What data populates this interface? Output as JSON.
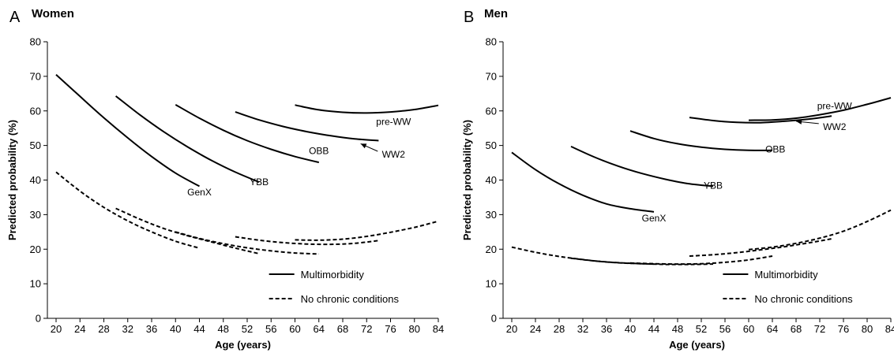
{
  "chart_data": [
    {
      "type": "line",
      "panel": "A",
      "title": "Women",
      "xlabel": "Age (years)",
      "ylabel": "Predicted probability (%)",
      "xlim": [
        20,
        84
      ],
      "ylim": [
        0,
        80
      ],
      "xticks": [
        20,
        24,
        28,
        32,
        36,
        40,
        44,
        48,
        52,
        56,
        60,
        64,
        68,
        72,
        76,
        80,
        84
      ],
      "yticks": [
        0,
        10,
        20,
        30,
        40,
        50,
        60,
        70,
        80
      ],
      "grid": false,
      "legend": {
        "position": "bottom-right",
        "entries": [
          {
            "label": "Multimorbidity",
            "style": "solid"
          },
          {
            "label": "No chronic conditions",
            "style": "dashed"
          }
        ]
      },
      "series": [
        {
          "name": "GenX",
          "group": "Multimorbidity",
          "style": "solid",
          "x": [
            20,
            24,
            28,
            32,
            36,
            40,
            44
          ],
          "y": [
            70.5,
            64.2,
            58.0,
            52.2,
            46.8,
            42.0,
            38.2
          ]
        },
        {
          "name": "YBB",
          "group": "Multimorbidity",
          "style": "solid",
          "x": [
            30,
            34,
            38,
            42,
            46,
            50,
            54
          ],
          "y": [
            64.3,
            58.9,
            54.0,
            49.6,
            45.7,
            42.3,
            39.4
          ]
        },
        {
          "name": "OBB",
          "group": "Multimorbidity",
          "style": "solid",
          "x": [
            40,
            44,
            48,
            52,
            56,
            60,
            64
          ],
          "y": [
            61.8,
            57.9,
            54.4,
            51.4,
            48.9,
            46.8,
            45.1
          ]
        },
        {
          "name": "WW2",
          "group": "Multimorbidity",
          "style": "solid",
          "x": [
            50,
            54,
            58,
            62,
            66,
            70,
            74
          ],
          "y": [
            59.7,
            57.4,
            55.5,
            54.0,
            52.8,
            51.9,
            51.4
          ]
        },
        {
          "name": "pre-WW",
          "group": "Multimorbidity",
          "style": "solid",
          "x": [
            60,
            64,
            68,
            72,
            76,
            80,
            84
          ],
          "y": [
            61.7,
            60.3,
            59.6,
            59.4,
            59.7,
            60.4,
            61.6
          ]
        },
        {
          "name": "",
          "group": "No chronic conditions",
          "style": "dashed",
          "x": [
            20,
            24,
            28,
            32,
            36,
            40,
            44
          ],
          "y": [
            42.3,
            36.8,
            32.1,
            28.2,
            25.0,
            22.3,
            20.3
          ]
        },
        {
          "name": "",
          "group": "No chronic conditions",
          "style": "dashed",
          "x": [
            30,
            34,
            38,
            42,
            46,
            50,
            54
          ],
          "y": [
            31.8,
            28.7,
            26.0,
            23.9,
            22.1,
            20.3,
            18.7
          ]
        },
        {
          "name": "",
          "group": "No chronic conditions",
          "style": "dashed",
          "x": [
            40,
            44,
            48,
            52,
            56,
            60,
            64
          ],
          "y": [
            25.0,
            23.1,
            21.6,
            20.4,
            19.5,
            18.9,
            18.6
          ]
        },
        {
          "name": "",
          "group": "No chronic conditions",
          "style": "dashed",
          "x": [
            50,
            54,
            58,
            62,
            66,
            70,
            74
          ],
          "y": [
            23.6,
            22.6,
            21.9,
            21.5,
            21.4,
            21.7,
            22.5
          ]
        },
        {
          "name": "",
          "group": "No chronic conditions",
          "style": "dashed",
          "x": [
            60,
            64,
            68,
            72,
            76,
            80,
            84
          ],
          "y": [
            22.7,
            22.6,
            22.9,
            23.7,
            24.9,
            26.3,
            28.1
          ]
        }
      ],
      "annotations": [
        {
          "text": "GenX",
          "x": 44,
          "y": 35.5
        },
        {
          "text": "YBB",
          "x": 54,
          "y": 38.5
        },
        {
          "text": "OBB",
          "x": 64,
          "y": 47.5
        },
        {
          "text": "WW2",
          "x": 76.5,
          "y": 46.5,
          "arrow_to": [
            71,
            50.5
          ]
        },
        {
          "text": "pre-WW",
          "x": 76.5,
          "y": 56
        }
      ]
    },
    {
      "type": "line",
      "panel": "B",
      "title": "Men",
      "xlabel": "Age (years)",
      "ylabel": "Predicted probability (%)",
      "xlim": [
        20,
        84
      ],
      "ylim": [
        0,
        80
      ],
      "xticks": [
        20,
        24,
        28,
        32,
        36,
        40,
        44,
        48,
        52,
        56,
        60,
        64,
        68,
        72,
        76,
        80,
        84
      ],
      "yticks": [
        0,
        10,
        20,
        30,
        40,
        50,
        60,
        70,
        80
      ],
      "grid": false,
      "legend": {
        "position": "bottom-right",
        "entries": [
          {
            "label": "Multimorbidity",
            "style": "solid"
          },
          {
            "label": "No chronic conditions",
            "style": "dashed"
          }
        ]
      },
      "series": [
        {
          "name": "GenX",
          "group": "Multimorbidity",
          "style": "solid",
          "x": [
            20,
            24,
            28,
            32,
            36,
            40,
            44
          ],
          "y": [
            48.0,
            43.0,
            38.9,
            35.6,
            33.1,
            31.7,
            30.8
          ]
        },
        {
          "name": "YBB",
          "group": "Multimorbidity",
          "style": "solid",
          "x": [
            30,
            34,
            38,
            42,
            46,
            50,
            54
          ],
          "y": [
            49.7,
            46.6,
            44.0,
            41.9,
            40.2,
            38.9,
            38.2
          ]
        },
        {
          "name": "OBB",
          "group": "Multimorbidity",
          "style": "solid",
          "x": [
            40,
            44,
            48,
            52,
            56,
            60,
            64
          ],
          "y": [
            54.2,
            52.0,
            50.5,
            49.5,
            48.9,
            48.6,
            48.6
          ]
        },
        {
          "name": "WW2",
          "group": "Multimorbidity",
          "style": "solid",
          "x": [
            50,
            54,
            58,
            62,
            66,
            70,
            74
          ],
          "y": [
            58.1,
            57.2,
            56.7,
            56.6,
            57.0,
            57.6,
            58.5
          ]
        },
        {
          "name": "pre-WW",
          "group": "Multimorbidity",
          "style": "solid",
          "x": [
            60,
            64,
            68,
            72,
            76,
            80,
            84
          ],
          "y": [
            57.3,
            57.4,
            57.9,
            58.9,
            60.2,
            61.9,
            63.8
          ]
        },
        {
          "name": "",
          "group": "No chronic conditions",
          "style": "dashed",
          "x": [
            20,
            24,
            28,
            32,
            36,
            40,
            44
          ],
          "y": [
            20.6,
            19.1,
            17.9,
            17.0,
            16.3,
            15.9,
            15.7
          ]
        },
        {
          "name": "",
          "group": "No chronic conditions",
          "style": "dashed",
          "x": [
            30,
            34,
            38,
            42,
            46,
            50,
            54
          ],
          "y": [
            17.4,
            16.6,
            16.1,
            15.8,
            15.6,
            15.6,
            15.7
          ]
        },
        {
          "name": "",
          "group": "No chronic conditions",
          "style": "dashed",
          "x": [
            40,
            44,
            48,
            52,
            56,
            60,
            64
          ],
          "y": [
            16.0,
            15.8,
            15.7,
            15.8,
            16.2,
            16.9,
            18.0
          ]
        },
        {
          "name": "",
          "group": "No chronic conditions",
          "style": "dashed",
          "x": [
            50,
            54,
            58,
            62,
            66,
            70,
            74
          ],
          "y": [
            18.0,
            18.4,
            19.0,
            19.8,
            20.7,
            21.8,
            23.0
          ]
        },
        {
          "name": "",
          "group": "No chronic conditions",
          "style": "dashed",
          "x": [
            60,
            64,
            68,
            72,
            76,
            80,
            84
          ],
          "y": [
            19.9,
            20.6,
            21.7,
            23.2,
            25.2,
            28.0,
            31.3
          ]
        }
      ],
      "annotations": [
        {
          "text": "GenX",
          "x": 44,
          "y": 28
        },
        {
          "text": "YBB",
          "x": 54,
          "y": 37.5
        },
        {
          "text": "OBB",
          "x": 64.5,
          "y": 48
        },
        {
          "text": "WW2",
          "x": 74.5,
          "y": 54.5,
          "arrow_to": [
            68,
            57
          ]
        },
        {
          "text": "pre-WW",
          "x": 74.5,
          "y": 60.5
        }
      ]
    }
  ]
}
